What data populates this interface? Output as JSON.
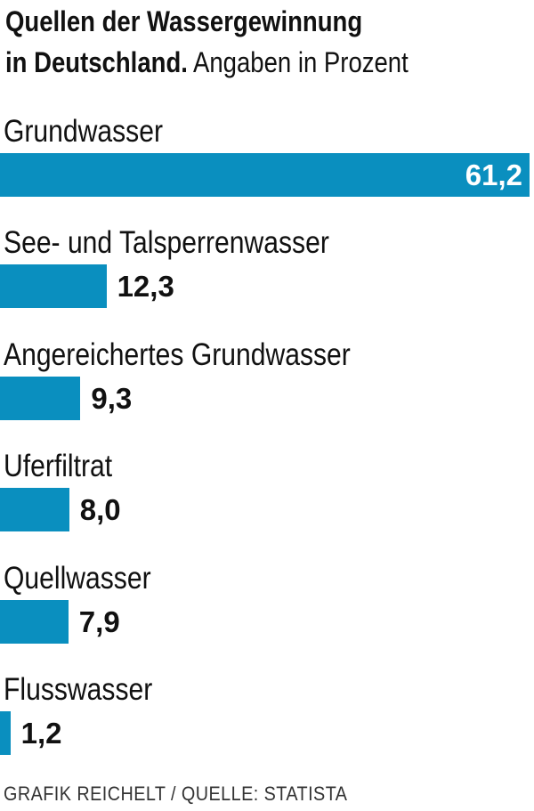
{
  "title": {
    "line1": "Quellen der Wassergewinnung",
    "line2_bold": "in Deutschland.",
    "line2_rest": "Angaben in Prozent"
  },
  "source": "GRAFIK REICHELT / QUELLE: STATISTA",
  "colors": {
    "bar": "#0a8fbf",
    "text": "#111111",
    "inside_value": "#ffffff"
  },
  "chart_data": {
    "type": "bar",
    "orientation": "horizontal",
    "categories": [
      "Grundwasser",
      "See- und Talsperrenwasser",
      "Angereichertes Grundwasser",
      "Uferfiltrat",
      "Quellwasser",
      "Flusswasser"
    ],
    "values": [
      61.2,
      12.3,
      9.3,
      8.0,
      7.9,
      1.2
    ],
    "value_labels": [
      "61,2",
      "12,3",
      "9,3",
      "8,0",
      "7,9",
      "1,2"
    ],
    "xlim": [
      0,
      61.2
    ],
    "grid": false,
    "legend": "none"
  }
}
